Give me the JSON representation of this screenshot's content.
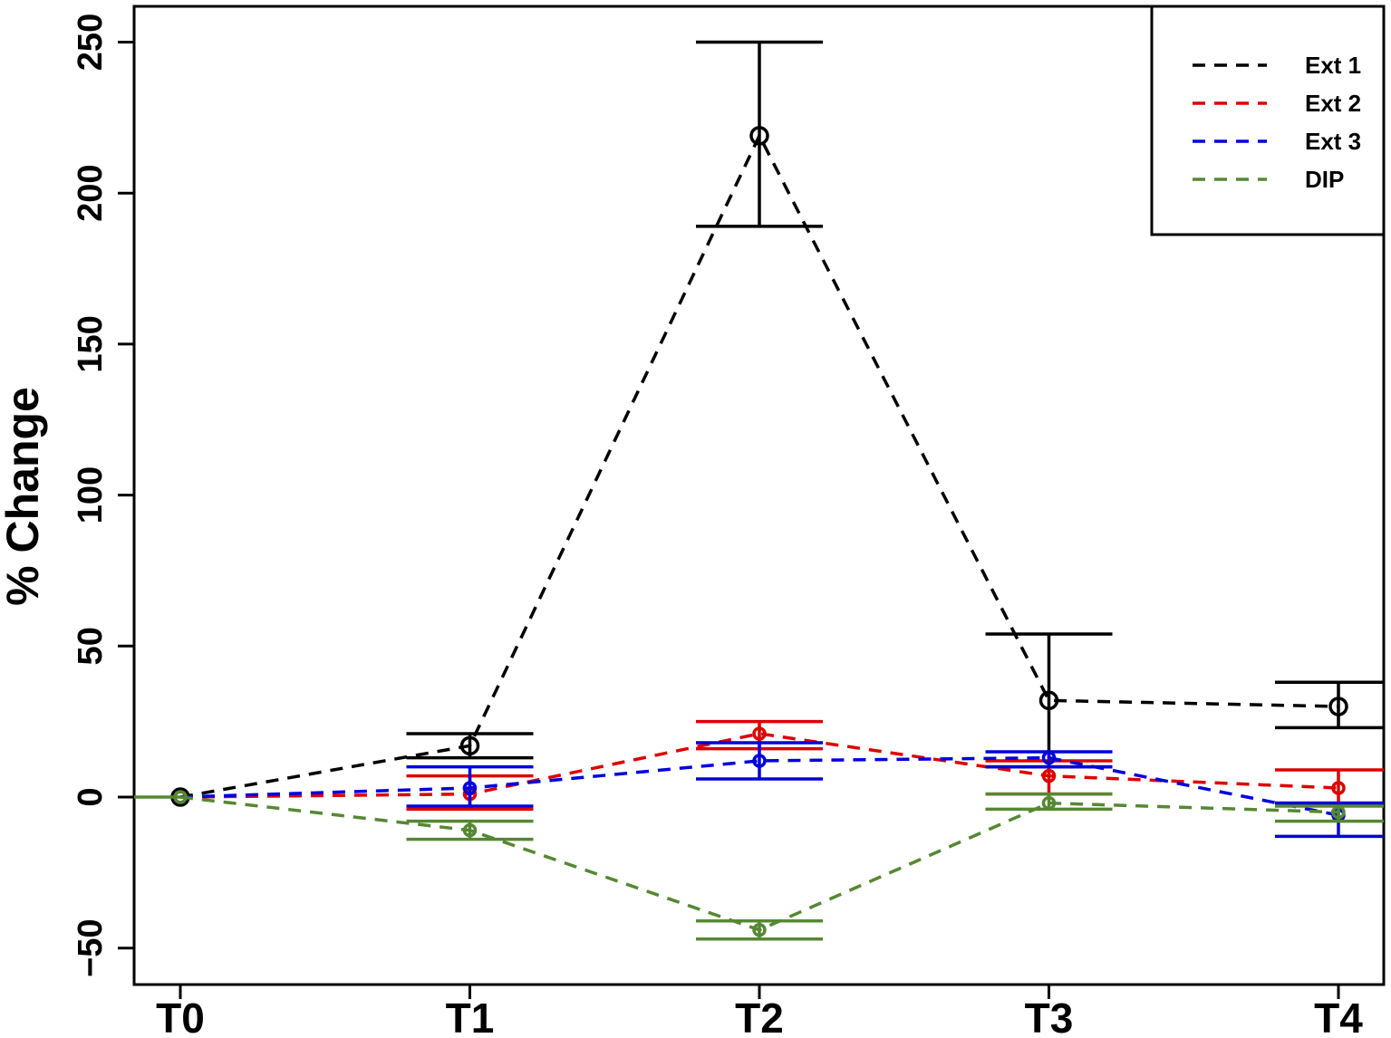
{
  "chart_data": {
    "type": "line",
    "title": "",
    "xlabel": "",
    "ylabel": "% Change",
    "categories": [
      "T0",
      "T1",
      "T2",
      "T3",
      "T4"
    ],
    "ylim": [
      -62,
      262
    ],
    "yticks": [
      -50,
      0,
      50,
      100,
      150,
      200,
      250
    ],
    "ytick_labels": [
      "−50",
      "0",
      "50",
      "100",
      "150",
      "200",
      "250"
    ],
    "grid": false,
    "legend_position": "top-right",
    "line_style": "dashed",
    "series": [
      {
        "name": "Ext 1",
        "color": "#000000",
        "values": [
          0,
          17,
          219,
          32,
          30
        ],
        "error_low": [
          null,
          13,
          189,
          10,
          23
        ],
        "error_high": [
          null,
          21,
          250,
          54,
          38
        ]
      },
      {
        "name": "Ext 2",
        "color": "#dd0000",
        "values": [
          0,
          1,
          21,
          7,
          3
        ],
        "error_low": [
          null,
          -4,
          16,
          1,
          -2
        ],
        "error_high": [
          null,
          7,
          25,
          12,
          9
        ]
      },
      {
        "name": "Ext 3",
        "color": "#0000dd",
        "values": [
          0,
          3,
          12,
          13,
          -6
        ],
        "error_low": [
          null,
          -3,
          6,
          10,
          -13
        ],
        "error_high": [
          null,
          10,
          18,
          15,
          -2
        ]
      },
      {
        "name": "DIP",
        "color": "#558833",
        "values": [
          0,
          -11,
          -44,
          -2,
          -5
        ],
        "error_low": [
          null,
          -14,
          -47,
          -4,
          -8
        ],
        "error_high": [
          null,
          -8,
          -41,
          1,
          -3
        ]
      }
    ]
  }
}
